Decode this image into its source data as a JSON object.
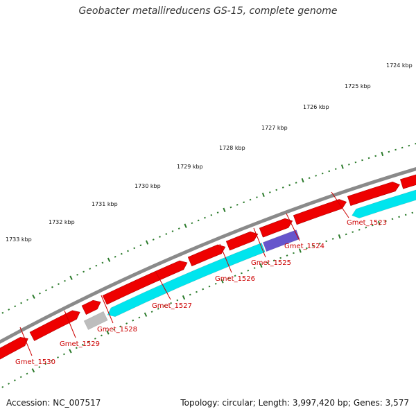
{
  "title": "Geobacter metallireducens GS-15, complete genome",
  "footer": {
    "accession": "Accession: NC_007517",
    "summary": "Topology: circular; Length: 3,997,420 bp; Genes: 3,577"
  },
  "colors": {
    "backbone": "#8a8a8a",
    "forward_gene": "#ee0000",
    "reverse_cds": "#00e5ee",
    "reverse_special": "#6655cc",
    "reverse_other": "#bdbdbd",
    "tick": "#2a7a2a",
    "gene_label": "#cc0000"
  },
  "kbp_labels": [
    "1724 kbp",
    "1725 kbp",
    "1726 kbp",
    "1727 kbp",
    "1728 kbp",
    "1729 kbp",
    "1730 kbp",
    "1731 kbp",
    "1732 kbp",
    "1733 kbp"
  ],
  "gene_labels": [
    "Gmet_1523",
    "Gmet_1524",
    "Gmet_1525",
    "Gmet_1526",
    "Gmet_1527",
    "Gmet_1528",
    "Gmet_1529",
    "Gmet_1530"
  ]
}
